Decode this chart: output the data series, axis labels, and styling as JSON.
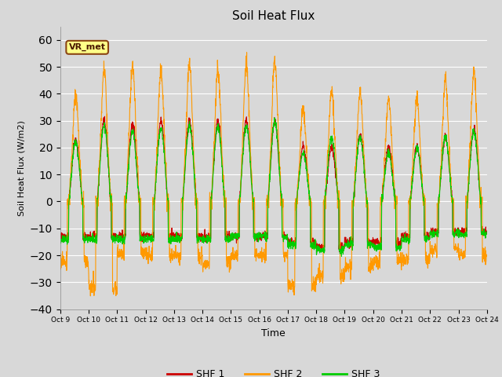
{
  "title": "Soil Heat Flux",
  "ylabel": "Soil Heat Flux (W/m2)",
  "xlabel": "Time",
  "ylim": [
    -40,
    65
  ],
  "yticks": [
    -40,
    -30,
    -20,
    -10,
    0,
    10,
    20,
    30,
    40,
    50,
    60
  ],
  "xtick_labels": [
    "Oct 9",
    "Oct 10",
    "Oct 11",
    "Oct 12",
    "Oct 13",
    "Oct 14",
    "Oct 15",
    "Oct 16",
    "Oct 17",
    "Oct 18",
    "Oct 19",
    "Oct 20",
    "Oct 21",
    "Oct 22",
    "Oct 23",
    "Oct 24"
  ],
  "n_days": 15,
  "colors": {
    "SHF1": "#cc0000",
    "SHF2": "#ff9900",
    "SHF3": "#00cc00"
  },
  "legend_labels": [
    "SHF 1",
    "SHF 2",
    "SHF 3"
  ],
  "background_color": "#d8d8d8",
  "annotation_label": "VR_met",
  "shf1_day_amps": [
    23,
    30,
    29,
    30,
    30,
    30,
    30,
    30,
    20,
    20,
    25,
    20,
    20,
    24,
    27
  ],
  "shf1_night_depths": [
    13,
    13,
    13,
    13,
    13,
    13,
    13,
    13,
    15,
    17,
    15,
    15,
    13,
    11,
    11
  ],
  "shf2_day_amps": [
    40,
    49,
    50,
    49,
    51,
    49,
    51,
    52,
    34,
    41,
    41,
    38,
    38,
    45,
    48
  ],
  "shf2_night_depths": [
    22,
    32,
    19,
    20,
    20,
    23,
    20,
    20,
    31,
    28,
    24,
    22,
    22,
    18,
    20
  ],
  "shf3_day_amps": [
    22,
    28,
    26,
    27,
    28,
    28,
    28,
    30,
    18,
    24,
    24,
    18,
    20,
    24,
    26
  ],
  "shf3_night_depths": [
    14,
    14,
    14,
    14,
    14,
    14,
    13,
    13,
    16,
    18,
    16,
    17,
    14,
    12,
    12
  ],
  "shf2_peak_hour": 13,
  "shf1_peak_hour": 13,
  "shf3_peak_hour": 13
}
